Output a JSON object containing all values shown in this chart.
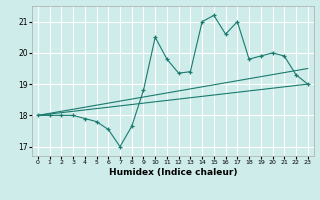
{
  "xlabel": "Humidex (Indice chaleur)",
  "ylabel": "",
  "bg_color": "#ceecea",
  "line_color": "#1a7a6e",
  "grid_color": "#ffffff",
  "xlim": [
    -0.5,
    23.5
  ],
  "ylim": [
    16.7,
    21.5
  ],
  "yticks": [
    17,
    18,
    19,
    20,
    21
  ],
  "xticks": [
    0,
    1,
    2,
    3,
    4,
    5,
    6,
    7,
    8,
    9,
    10,
    11,
    12,
    13,
    14,
    15,
    16,
    17,
    18,
    19,
    20,
    21,
    22,
    23
  ],
  "series1_x": [
    0,
    1,
    2,
    3,
    4,
    5,
    6,
    7,
    8,
    9,
    10,
    11,
    12,
    13,
    14,
    15,
    16,
    17,
    18,
    19,
    20,
    21,
    22,
    23
  ],
  "series1_y": [
    18.0,
    18.0,
    18.0,
    18.0,
    17.9,
    17.8,
    17.55,
    17.0,
    17.65,
    18.8,
    20.5,
    19.8,
    19.35,
    19.4,
    21.0,
    21.2,
    20.6,
    21.0,
    19.8,
    19.9,
    20.0,
    19.9,
    19.3,
    19.0
  ],
  "series2_x": [
    0,
    23
  ],
  "series2_y": [
    18.0,
    19.5
  ],
  "series3_x": [
    0,
    23
  ],
  "series3_y": [
    18.0,
    19.0
  ]
}
